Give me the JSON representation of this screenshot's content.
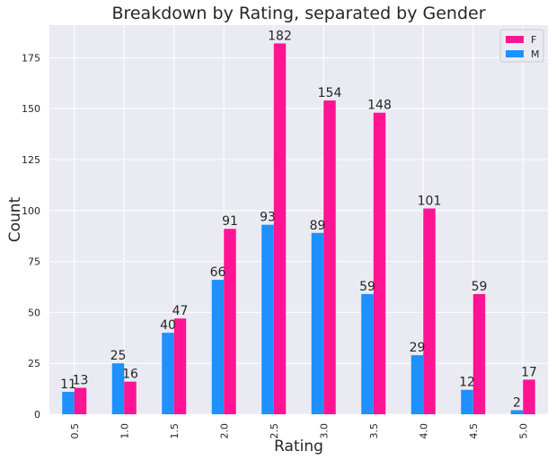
{
  "chart_data": {
    "type": "bar",
    "title": "Breakdown by Rating, separated by Gender",
    "xlabel": "Rating",
    "ylabel": "Count",
    "categories": [
      "0.5",
      "1.0",
      "1.5",
      "2.0",
      "2.5",
      "3.0",
      "3.5",
      "4.0",
      "4.5",
      "5.0"
    ],
    "series": [
      {
        "name": "M",
        "color": "#1e90ff",
        "values": [
          11,
          25,
          40,
          66,
          93,
          89,
          59,
          29,
          12,
          2
        ]
      },
      {
        "name": "F",
        "color": "#ff1493",
        "values": [
          13,
          16,
          47,
          91,
          182,
          154,
          148,
          101,
          59,
          17
        ]
      }
    ],
    "legend_order": [
      "F",
      "M"
    ],
    "yticks": [
      0,
      25,
      50,
      75,
      100,
      125,
      150,
      175
    ],
    "ylim": [
      0,
      191
    ],
    "grid": true,
    "legend_position": "top-right",
    "background_color": "#eaeaf2"
  }
}
